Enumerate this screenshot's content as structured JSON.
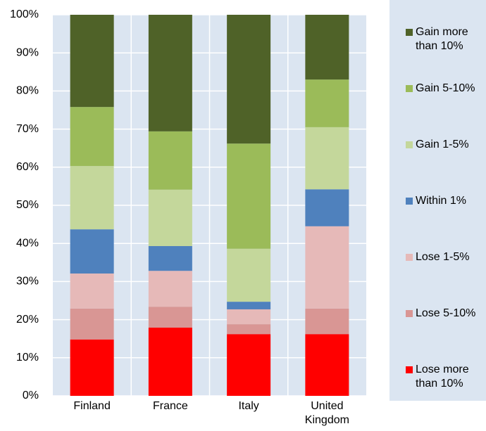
{
  "chart_data": {
    "type": "stacked_bar",
    "categories": [
      "Finland",
      "France",
      "Italy",
      "United Kingdom"
    ],
    "ylim": [
      0,
      100
    ],
    "yticks": [
      {
        "value": 0,
        "label": "0%"
      },
      {
        "value": 10,
        "label": "10%"
      },
      {
        "value": 20,
        "label": "20%"
      },
      {
        "value": 30,
        "label": "30%"
      },
      {
        "value": 40,
        "label": "40%"
      },
      {
        "value": 50,
        "label": "50%"
      },
      {
        "value": 60,
        "label": "60%"
      },
      {
        "value": 70,
        "label": "70%"
      },
      {
        "value": 80,
        "label": "80%"
      },
      {
        "value": 90,
        "label": "90%"
      },
      {
        "value": 100,
        "label": "100%"
      }
    ],
    "grid": true,
    "legend": "right",
    "series": [
      {
        "name": "Lose more than 10%",
        "color": "#ff0000",
        "values": [
          14.8,
          17.9,
          16.2,
          16.2
        ]
      },
      {
        "name": "Lose 5-10%",
        "color": "#d99694",
        "values": [
          8.1,
          5.5,
          2.6,
          6.7
        ]
      },
      {
        "name": "Lose 1-5%",
        "color": "#e6b9b8",
        "values": [
          9.2,
          9.4,
          3.9,
          21.6
        ]
      },
      {
        "name": "Within 1%",
        "color": "#4f81bd",
        "values": [
          11.6,
          6.5,
          2.0,
          9.7
        ]
      },
      {
        "name": "Gain 1-5%",
        "color": "#c4d79b",
        "values": [
          16.6,
          14.8,
          13.9,
          16.3
        ]
      },
      {
        "name": "Gain 5-10%",
        "color": "#9bbb59",
        "values": [
          15.5,
          15.3,
          27.6,
          12.5
        ]
      },
      {
        "name": "Gain more than 10%",
        "color": "#4f6228",
        "values": [
          24.2,
          30.6,
          33.8,
          17.0
        ]
      }
    ]
  }
}
